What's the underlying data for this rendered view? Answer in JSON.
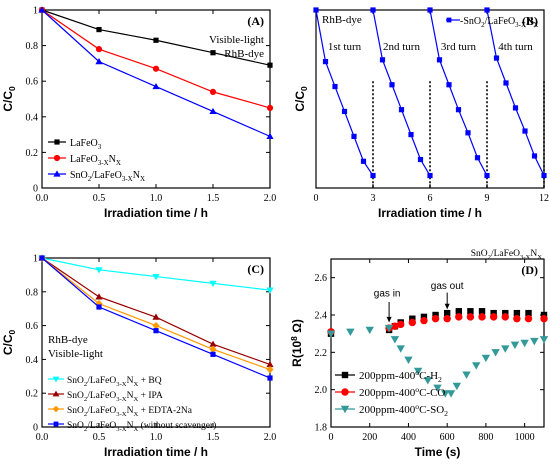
{
  "chart_data": [
    {
      "panel": "(A)",
      "type": "line",
      "annotations": [
        "Visible-light",
        "RhB-dye"
      ],
      "xlabel": "Irradiation time / h",
      "ylabel": "C/C0",
      "xlim": [
        0,
        2.0
      ],
      "ylim": [
        0,
        1.0
      ],
      "xticks": [
        "0.0",
        "0.5",
        "1.0",
        "1.5",
        "2.0"
      ],
      "yticks": [
        "0",
        "0.2",
        "0.4",
        "0.6",
        "0.8",
        "1"
      ],
      "legend_position": "bottom-left",
      "series": [
        {
          "name": "LaFeO3",
          "color": "#000000",
          "marker": "square",
          "x": [
            0,
            0.5,
            1.0,
            1.5,
            2.0
          ],
          "y": [
            1.0,
            0.89,
            0.83,
            0.76,
            0.69
          ]
        },
        {
          "name": "LaFeO3-XNX",
          "color": "#ff0000",
          "marker": "circle",
          "x": [
            0,
            0.5,
            1.0,
            1.5,
            2.0
          ],
          "y": [
            1.0,
            0.78,
            0.67,
            0.54,
            0.45
          ]
        },
        {
          "name": "SnO2/LaFeO3-XNX",
          "color": "#0000ff",
          "marker": "triangle",
          "x": [
            0,
            0.5,
            1.0,
            1.5,
            2.0
          ],
          "y": [
            1.0,
            0.71,
            0.57,
            0.43,
            0.29
          ]
        }
      ]
    },
    {
      "panel": "(B)",
      "type": "line",
      "annotations": [
        "RhB-dye",
        "1st turn",
        "2nd turn",
        "3rd turn",
        "4th turn"
      ],
      "xlabel": "Irradiation time / h",
      "ylabel": "C/C0",
      "xlim": [
        0,
        12
      ],
      "ylim": [
        0,
        1.0
      ],
      "xticks": [
        "0",
        "3",
        "6",
        "9",
        "12"
      ],
      "legend_position": "top-right",
      "dividers_x": [
        3,
        6,
        9,
        12
      ],
      "series": [
        {
          "name": "SnO2/LaFeO3-XNX",
          "color": "#0000ff",
          "marker": "square",
          "x": [
            0,
            0.5,
            1,
            1.5,
            2,
            2.5,
            3,
            3,
            3.5,
            4,
            4.5,
            5,
            5.5,
            6,
            6,
            6.5,
            7,
            7.5,
            8,
            8.5,
            9,
            9,
            9.5,
            10,
            10.5,
            11,
            11.5,
            12
          ],
          "y": [
            1.0,
            0.71,
            0.57,
            0.43,
            0.29,
            0.15,
            0.07,
            1.0,
            0.72,
            0.58,
            0.44,
            0.3,
            0.16,
            0.07,
            1.0,
            0.72,
            0.58,
            0.44,
            0.31,
            0.17,
            0.07,
            1.0,
            0.73,
            0.59,
            0.45,
            0.32,
            0.18,
            0.07
          ]
        }
      ]
    },
    {
      "panel": "(C)",
      "type": "line",
      "annotations": [
        "RhB-dye",
        "Visible-light"
      ],
      "xlabel": "Irradiation time / h",
      "ylabel": "C/C0",
      "xlim": [
        0,
        2.0
      ],
      "ylim": [
        0,
        1.0
      ],
      "xticks": [
        "0.0",
        "0.5",
        "1.0",
        "1.5",
        "2.0"
      ],
      "yticks": [
        "0",
        "0.2",
        "0.4",
        "0.6",
        "0.8",
        "1"
      ],
      "legend_position": "bottom-left",
      "series": [
        {
          "name": "SnO2/LaFeO3-XNX + BQ",
          "color": "#00ffff",
          "marker": "triangle-down",
          "x": [
            0,
            0.5,
            1.0,
            1.5,
            2.0
          ],
          "y": [
            1.0,
            0.93,
            0.89,
            0.85,
            0.81
          ]
        },
        {
          "name": "SnO2/LaFeO3-XNX + IPA",
          "color": "#990000",
          "marker": "triangle",
          "x": [
            0,
            0.5,
            1.0,
            1.5,
            2.0
          ],
          "y": [
            1.0,
            0.77,
            0.65,
            0.49,
            0.37
          ]
        },
        {
          "name": "SnO2/LaFeO3-XNX + EDTA-2Na",
          "color": "#ff9900",
          "marker": "diamond",
          "x": [
            0,
            0.5,
            1.0,
            1.5,
            2.0
          ],
          "y": [
            1.0,
            0.73,
            0.6,
            0.46,
            0.34
          ]
        },
        {
          "name": "SnO2/LaFeO3-XNX (without scavenger)",
          "color": "#0000ff",
          "marker": "square",
          "x": [
            0,
            0.5,
            1.0,
            1.5,
            2.0
          ],
          "y": [
            1.0,
            0.71,
            0.57,
            0.43,
            0.29
          ]
        }
      ]
    },
    {
      "panel": "(D)",
      "type": "scatter",
      "annotations": [
        "SnO2/LaFeO3-XNX",
        "gas in",
        "gas out"
      ],
      "xlabel": "Time (s)",
      "ylabel": "R(10^8 Ω)",
      "xlim": [
        0,
        1100
      ],
      "ylim": [
        1.8,
        2.7
      ],
      "xticks": [
        "0",
        "200",
        "400",
        "600",
        "800",
        "1000"
      ],
      "yticks": [
        "1.8",
        "2.0",
        "2.2",
        "2.4",
        "2.6"
      ],
      "legend_position": "bottom-left",
      "series": [
        {
          "name": "200ppm-400°C-H2",
          "color": "#000000",
          "marker": "square",
          "x": [
            0,
            300,
            330,
            360,
            420,
            480,
            540,
            600,
            660,
            720,
            780,
            840,
            900,
            960,
            1020,
            1100
          ],
          "y": [
            2.3,
            2.32,
            2.34,
            2.36,
            2.38,
            2.39,
            2.4,
            2.41,
            2.42,
            2.42,
            2.42,
            2.41,
            2.41,
            2.41,
            2.41,
            2.4
          ]
        },
        {
          "name": "200ppm-400°C-CO",
          "color": "#ff0000",
          "marker": "circle",
          "x": [
            0,
            300,
            330,
            360,
            420,
            480,
            540,
            600,
            660,
            720,
            780,
            840,
            900,
            960,
            1020,
            1100
          ],
          "y": [
            2.31,
            2.33,
            2.34,
            2.35,
            2.36,
            2.37,
            2.38,
            2.38,
            2.39,
            2.39,
            2.39,
            2.39,
            2.39,
            2.38,
            2.38,
            2.38
          ]
        },
        {
          "name": "200ppm-400°C-SO2",
          "color": "#339999",
          "marker": "triangle-down",
          "x": [
            0,
            100,
            200,
            300,
            330,
            360,
            400,
            450,
            500,
            550,
            590,
            620,
            650,
            700,
            750,
            800,
            850,
            900,
            950,
            1000,
            1050,
            1100
          ],
          "y": [
            2.3,
            2.31,
            2.32,
            2.33,
            2.27,
            2.22,
            2.16,
            2.1,
            2.05,
            2.01,
            1.98,
            1.98,
            2.02,
            2.08,
            2.13,
            2.17,
            2.2,
            2.22,
            2.24,
            2.25,
            2.26,
            2.27
          ]
        }
      ]
    }
  ]
}
